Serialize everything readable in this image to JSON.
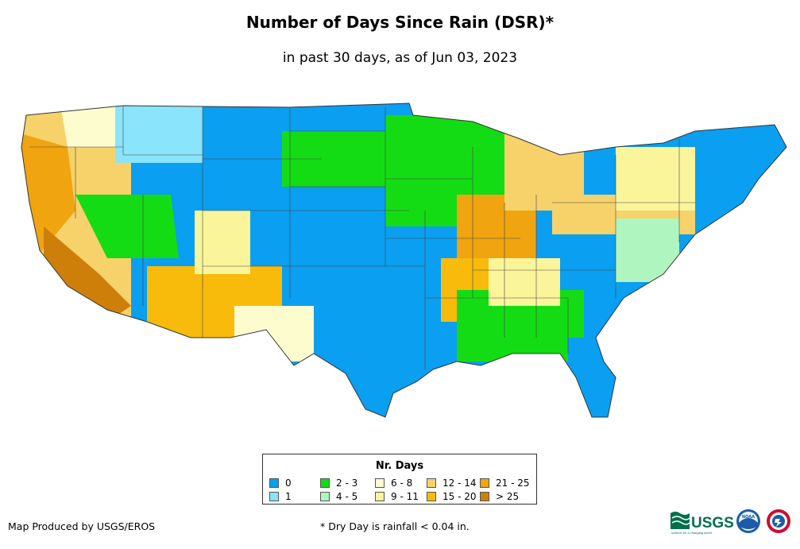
{
  "title": "Number of Days Since Rain (DSR)*",
  "subtitle": "in past 30 days, as of Jun 03, 2023",
  "legend": {
    "title": "Nr. Days",
    "items": [
      {
        "label": "0",
        "color": "#0a9ff0"
      },
      {
        "label": "1",
        "color": "#8ae4fb"
      },
      {
        "label": "2 - 3",
        "color": "#14dc14"
      },
      {
        "label": "4 - 5",
        "color": "#aff5c0"
      },
      {
        "label": "6 - 8",
        "color": "#fcfccf"
      },
      {
        "label": "9 - 11",
        "color": "#faf59a"
      },
      {
        "label": "12 - 14",
        "color": "#f7d26a"
      },
      {
        "label": "15 - 20",
        "color": "#f8bb0c"
      },
      {
        "label": "21 - 25",
        "color": "#f0a410"
      },
      {
        "label": "> 25",
        "color": "#cd7f0a"
      }
    ]
  },
  "footer": {
    "credit": "Map Produced by USGS/EROS",
    "note": "* Dry Day is rainfall < 0.04 in."
  },
  "logos": {
    "usgs": "USGS",
    "usgs_tagline": "science for a changing world",
    "noaa": "NOAA"
  }
}
